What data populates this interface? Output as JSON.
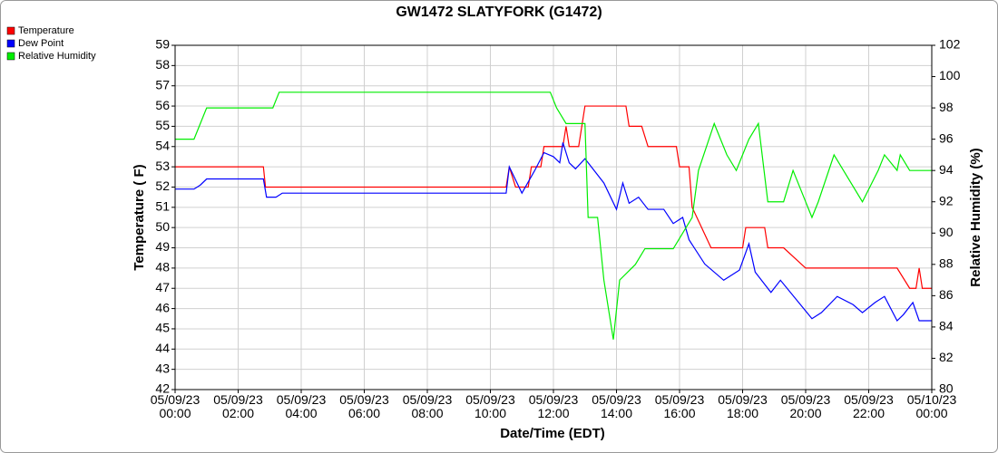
{
  "chart_data": {
    "type": "line",
    "title": "GW1472 SLATYFORK (G1472)",
    "xlabel": "Date/Time (EDT)",
    "ylabel": "Temperature ( F)",
    "y2label": "Relative Humidity (%)",
    "xlim": [
      "05/09/23 00:00",
      "05/10/23 00:00"
    ],
    "xticks": [
      "05/09/23 00:00",
      "05/09/23 02:00",
      "05/09/23 04:00",
      "05/09/23 06:00",
      "05/09/23 08:00",
      "05/09/23 10:00",
      "05/09/23 12:00",
      "05/09/23 14:00",
      "05/09/23 16:00",
      "05/09/23 18:00",
      "05/09/23 20:00",
      "05/09/23 22:00",
      "05/10/23 00:00"
    ],
    "ylim": [
      42,
      59
    ],
    "yticks": [
      42,
      43,
      44,
      45,
      46,
      47,
      48,
      49,
      50,
      51,
      52,
      53,
      54,
      55,
      56,
      57,
      58,
      59
    ],
    "y2lim": [
      80,
      102
    ],
    "y2ticks": [
      80,
      82,
      84,
      86,
      88,
      90,
      92,
      94,
      96,
      98,
      100,
      102
    ],
    "grid": true,
    "legend": "upper left",
    "series": [
      {
        "name": "Temperature",
        "color": "#ff0000",
        "x": [
          "05/09/23 00:00",
          "05/09/23 02:48",
          "05/09/23 02:52",
          "05/09/23 10:30",
          "05/09/23 10:36",
          "05/09/23 10:48",
          "05/09/23 11:12",
          "05/09/23 11:18",
          "05/09/23 11:36",
          "05/09/23 11:42",
          "05/09/23 12:18",
          "05/09/23 12:24",
          "05/09/23 12:30",
          "05/09/23 12:48",
          "05/09/23 13:00",
          "05/09/23 14:18",
          "05/09/23 14:24",
          "05/09/23 14:48",
          "05/09/23 15:00",
          "05/09/23 15:54",
          "05/09/23 16:00",
          "05/09/23 16:18",
          "05/09/23 16:24",
          "05/09/23 16:42",
          "05/09/23 17:00",
          "05/09/23 18:00",
          "05/09/23 18:06",
          "05/09/23 18:42",
          "05/09/23 18:48",
          "05/09/23 19:18",
          "05/09/23 20:00",
          "05/09/23 22:54",
          "05/09/23 23:18",
          "05/09/23 23:30",
          "05/09/23 23:36",
          "05/09/23 23:42",
          "05/10/23 00:00"
        ],
        "values": [
          53,
          53,
          52,
          52,
          53,
          52,
          52,
          53,
          53,
          54,
          54,
          55,
          54,
          54,
          56,
          56,
          55,
          55,
          54,
          54,
          53,
          53,
          51,
          50,
          49,
          49,
          50,
          50,
          49,
          49,
          48,
          48,
          47,
          47,
          48,
          47,
          47
        ]
      },
      {
        "name": "Dew Point",
        "color": "#0000ff",
        "x": [
          "05/09/23 00:00",
          "05/09/23 00:36",
          "05/09/23 00:48",
          "05/09/23 01:00",
          "05/09/23 02:48",
          "05/09/23 02:54",
          "05/09/23 03:12",
          "05/09/23 03:24",
          "05/09/23 10:30",
          "05/09/23 10:36",
          "05/09/23 11:00",
          "05/09/23 11:24",
          "05/09/23 11:42",
          "05/09/23 12:00",
          "05/09/23 12:12",
          "05/09/23 12:18",
          "05/09/23 12:30",
          "05/09/23 12:42",
          "05/09/23 13:00",
          "05/09/23 13:36",
          "05/09/23 14:00",
          "05/09/23 14:12",
          "05/09/23 14:24",
          "05/09/23 14:42",
          "05/09/23 15:00",
          "05/09/23 15:30",
          "05/09/23 15:48",
          "05/09/23 16:06",
          "05/09/23 16:18",
          "05/09/23 16:48",
          "05/09/23 17:24",
          "05/09/23 17:54",
          "05/09/23 18:12",
          "05/09/23 18:24",
          "05/09/23 18:54",
          "05/09/23 19:12",
          "05/09/23 20:12",
          "05/09/23 20:30",
          "05/09/23 21:00",
          "05/09/23 21:30",
          "05/09/23 21:48",
          "05/09/23 22:12",
          "05/09/23 22:30",
          "05/09/23 22:54",
          "05/09/23 23:06",
          "05/09/23 23:24",
          "05/09/23 23:36",
          "05/10/23 00:00"
        ],
        "values": [
          51.9,
          51.9,
          52.1,
          52.4,
          52.4,
          51.5,
          51.5,
          51.7,
          51.7,
          53,
          51.7,
          52.8,
          53.7,
          53.5,
          53.2,
          54.2,
          53.2,
          52.9,
          53.4,
          52.2,
          50.9,
          52.2,
          51.2,
          51.5,
          50.9,
          50.9,
          50.2,
          50.5,
          49.4,
          48.2,
          47.4,
          47.9,
          49.2,
          47.8,
          46.8,
          47.4,
          45.5,
          45.8,
          46.6,
          46.2,
          45.8,
          46.3,
          46.6,
          45.4,
          45.7,
          46.3,
          45.4,
          45.4
        ]
      },
      {
        "name": "Relative Humidity",
        "color": "#00ee00",
        "axis": "y2",
        "x": [
          "05/09/23 00:00",
          "05/09/23 00:36",
          "05/09/23 00:48",
          "05/09/23 01:00",
          "05/09/23 03:06",
          "05/09/23 03:18",
          "05/09/23 11:54",
          "05/09/23 12:06",
          "05/09/23 12:24",
          "05/09/23 13:00",
          "05/09/23 13:06",
          "05/09/23 13:24",
          "05/09/23 13:36",
          "05/09/23 13:54",
          "05/09/23 14:06",
          "05/09/23 14:36",
          "05/09/23 14:54",
          "05/09/23 15:48",
          "05/09/23 16:06",
          "05/09/23 16:24",
          "05/09/23 16:36",
          "05/09/23 17:06",
          "05/09/23 17:30",
          "05/09/23 17:48",
          "05/09/23 18:00",
          "05/09/23 18:12",
          "05/09/23 18:30",
          "05/09/23 18:48",
          "05/09/23 19:18",
          "05/09/23 19:36",
          "05/09/23 20:12",
          "05/09/23 20:24",
          "05/09/23 20:54",
          "05/09/23 21:12",
          "05/09/23 21:48",
          "05/09/23 22:18",
          "05/09/23 22:30",
          "05/09/23 22:54",
          "05/09/23 23:00",
          "05/09/23 23:18",
          "05/10/23 00:00"
        ],
        "values": [
          96,
          96,
          97,
          98,
          98,
          99,
          99,
          98,
          97,
          97,
          91,
          91,
          87,
          83.2,
          87,
          88,
          89,
          89,
          90,
          91,
          94,
          97,
          95,
          94,
          95,
          96,
          97,
          92,
          92,
          94,
          91,
          92,
          95,
          94,
          92,
          94,
          95,
          94,
          95,
          94,
          94
        ]
      }
    ]
  }
}
